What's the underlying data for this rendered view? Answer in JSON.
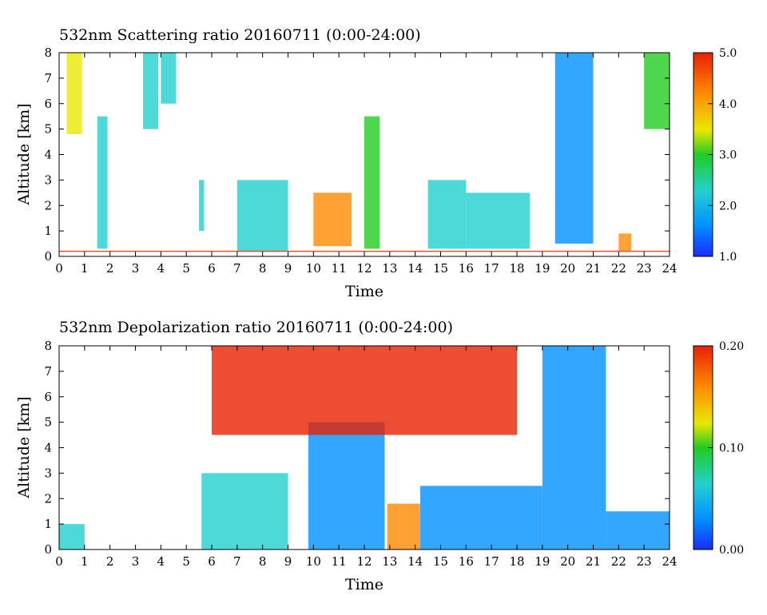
{
  "charts": [
    {
      "title": "532nm Scattering ratio  20160711 (0:00-24:00)",
      "xlabel": "Time",
      "ylabel": "Altitude [km]",
      "colorbar_ticks": [
        "5.0",
        "4.0",
        "3.0",
        "2.0",
        "1.0"
      ]
    },
    {
      "title": "532nm Depolarization ratio  20160711 (0:00-24:00)",
      "xlabel": "Time",
      "ylabel": "Altitude [km]",
      "colorbar_ticks": [
        "0.20",
        "0.10",
        "0.00"
      ]
    }
  ],
  "colors": {
    "colormap": [
      "#1a2bff",
      "#0090ff",
      "#22d0d0",
      "#22cc22",
      "#e8e800",
      "#ff8a00",
      "#e82000"
    ],
    "surface_line": "#e85030"
  },
  "chart_data": [
    {
      "type": "heatmap",
      "title": "532nm Scattering ratio  20160711 (0:00-24:00)",
      "xlabel": "Time",
      "ylabel": "Altitude [km]",
      "xlim": [
        0,
        24
      ],
      "ylim": [
        0,
        8
      ],
      "xticks": [
        0,
        1,
        2,
        3,
        4,
        5,
        6,
        7,
        8,
        9,
        10,
        11,
        12,
        13,
        14,
        15,
        16,
        17,
        18,
        19,
        20,
        21,
        22,
        23,
        24
      ],
      "yticks": [
        0,
        1,
        2,
        3,
        4,
        5,
        6,
        7,
        8
      ],
      "colorbar": {
        "min": 1.0,
        "max": 5.0,
        "ticks": [
          1.0,
          2.0,
          3.0,
          4.0,
          5.0
        ]
      },
      "features": [
        {
          "t0": 0.3,
          "t1": 0.9,
          "z0": 4.8,
          "z1": 8.0,
          "value": 3.5
        },
        {
          "t0": 1.5,
          "t1": 1.9,
          "z0": 0.3,
          "z1": 5.5,
          "value": 2.5
        },
        {
          "t0": 3.3,
          "t1": 3.9,
          "z0": 5.0,
          "z1": 8.0,
          "value": 2.6
        },
        {
          "t0": 4.0,
          "t1": 4.6,
          "z0": 6.0,
          "z1": 8.0,
          "value": 2.4
        },
        {
          "t0": 5.5,
          "t1": 5.7,
          "z0": 1.0,
          "z1": 3.0,
          "value": 2.6
        },
        {
          "t0": 7.0,
          "t1": 9.0,
          "z0": 0.2,
          "z1": 3.0,
          "value": 2.0
        },
        {
          "t0": 10.0,
          "t1": 11.5,
          "z0": 0.4,
          "z1": 2.5,
          "value": 4.2
        },
        {
          "t0": 12.0,
          "t1": 12.6,
          "z0": 0.3,
          "z1": 5.5,
          "value": 3.0
        },
        {
          "t0": 14.5,
          "t1": 16.0,
          "z0": 0.3,
          "z1": 3.0,
          "value": 2.0
        },
        {
          "t0": 16.0,
          "t1": 18.5,
          "z0": 0.3,
          "z1": 2.5,
          "value": 2.2
        },
        {
          "t0": 19.5,
          "t1": 21.0,
          "z0": 0.5,
          "z1": 8.0,
          "value": 1.6
        },
        {
          "t0": 22.0,
          "t1": 22.5,
          "z0": 0.2,
          "z1": 0.9,
          "value": 4.0
        },
        {
          "t0": 23.0,
          "t1": 24.0,
          "z0": 5.0,
          "z1": 8.0,
          "value": 3.0
        }
      ]
    },
    {
      "type": "heatmap",
      "title": "532nm Depolarization ratio  20160711 (0:00-24:00)",
      "xlabel": "Time",
      "ylabel": "Altitude [km]",
      "xlim": [
        0,
        24
      ],
      "ylim": [
        0,
        8
      ],
      "xticks": [
        0,
        1,
        2,
        3,
        4,
        5,
        6,
        7,
        8,
        9,
        10,
        11,
        12,
        13,
        14,
        15,
        16,
        17,
        18,
        19,
        20,
        21,
        22,
        23,
        24
      ],
      "yticks": [
        0,
        1,
        2,
        3,
        4,
        5,
        6,
        7,
        8
      ],
      "colorbar": {
        "min": 0.0,
        "max": 0.2,
        "ticks": [
          0.0,
          0.1,
          0.2
        ]
      },
      "features": [
        {
          "t0": 0.0,
          "t1": 1.0,
          "z0": 0.0,
          "z1": 1.0,
          "value": 0.05
        },
        {
          "t0": 5.6,
          "t1": 9.0,
          "z0": 0.0,
          "z1": 3.0,
          "value": 0.06
        },
        {
          "t0": 9.8,
          "t1": 12.8,
          "z0": 0.0,
          "z1": 5.0,
          "value": 0.04
        },
        {
          "t0": 12.9,
          "t1": 14.2,
          "z0": 0.0,
          "z1": 1.8,
          "value": 0.16
        },
        {
          "t0": 14.2,
          "t1": 19.0,
          "z0": 0.0,
          "z1": 2.5,
          "value": 0.04
        },
        {
          "t0": 19.0,
          "t1": 21.5,
          "z0": 0.0,
          "z1": 8.0,
          "value": 0.03
        },
        {
          "t0": 21.5,
          "t1": 24.0,
          "z0": 0.0,
          "z1": 1.5,
          "value": 0.04
        },
        {
          "t0": 6.0,
          "t1": 18.0,
          "z0": 4.5,
          "z1": 8.0,
          "value": 0.2
        }
      ]
    }
  ]
}
